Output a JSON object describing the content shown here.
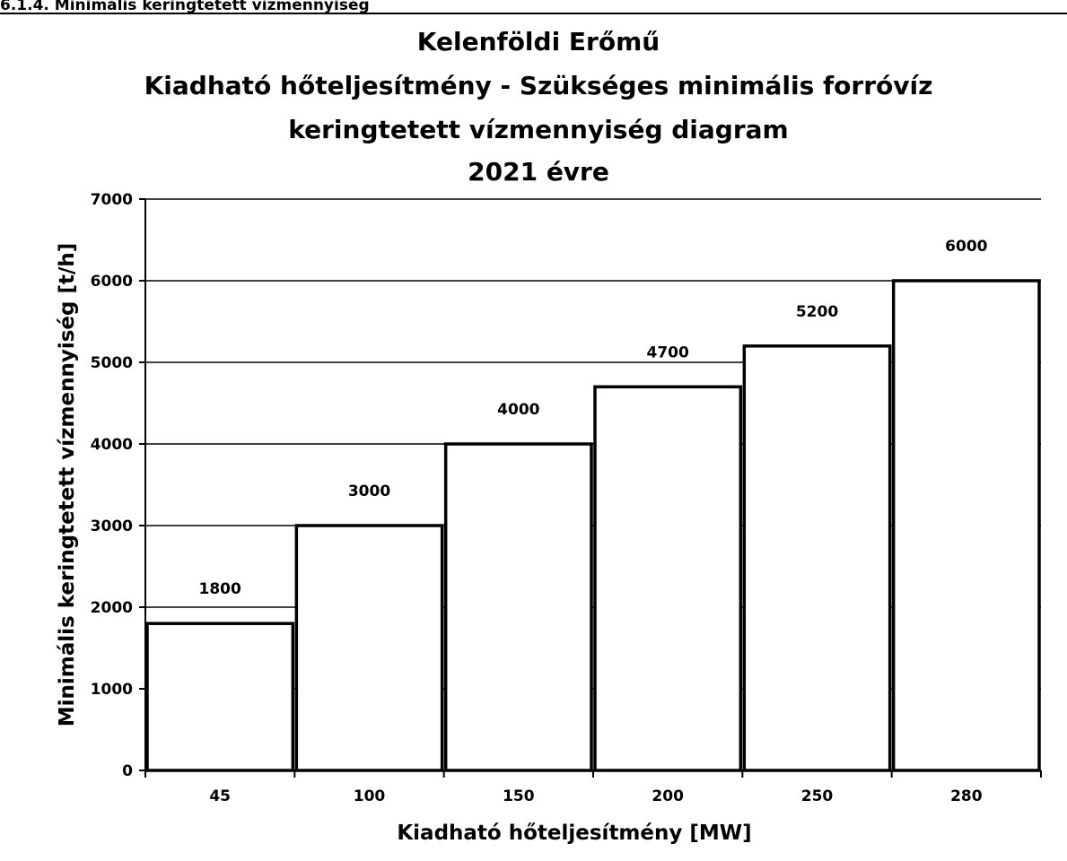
{
  "page": {
    "section_heading": "6.1.4. Minimális keringtetett vízmennyiség"
  },
  "chart_data": {
    "type": "bar",
    "title_lines": [
      "Kelenföldi Erőmű",
      "Kiadható hőteljesítmény - Szükséges minimális forróvíz",
      "keringtetett vízmennyiség diagram",
      "2021 évre"
    ],
    "xlabel": "Kiadható hőteljesítmény [MW]",
    "ylabel": "Minimális keringtetett vízmennyiség [t/h]",
    "categories": [
      "45",
      "100",
      "150",
      "200",
      "250",
      "280"
    ],
    "values": [
      1800,
      3000,
      4000,
      4700,
      5200,
      6000
    ],
    "data_labels": [
      "1800",
      "3000",
      "4000",
      "4700",
      "5200",
      "6000"
    ],
    "ylim": [
      0,
      7000
    ],
    "yticks": [
      0,
      1000,
      2000,
      3000,
      4000,
      5000,
      6000,
      7000
    ],
    "ytick_labels": [
      "0",
      "1000",
      "2000",
      "3000",
      "4000",
      "5000",
      "6000",
      "7000"
    ],
    "grid": true,
    "legend": "none",
    "colors": {
      "bar_fill": "#ffffff",
      "bar_edge": "#000000",
      "grid": "#000000"
    }
  }
}
